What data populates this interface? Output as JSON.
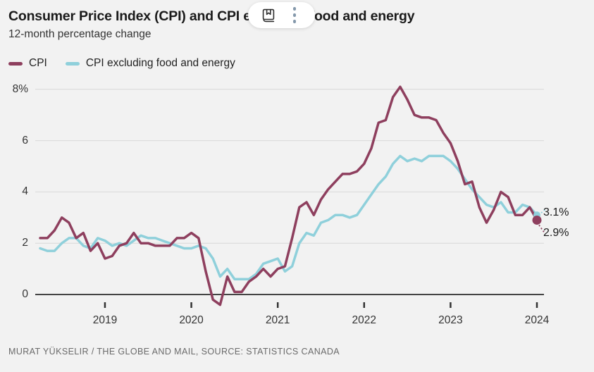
{
  "header": {
    "title": "Consumer Price Index (CPI) and CPI excluding food and energy",
    "subtitle": "12-month percentage change"
  },
  "toolbar": {
    "icons": [
      {
        "name": "bookmark-icon"
      },
      {
        "name": "overflow-menu-icon"
      }
    ]
  },
  "footer": {
    "credit": "MURAT YÜKSELIR / THE GLOBE AND MAIL, SOURCE: STATISTICS CANADA"
  },
  "colors": {
    "background": "#f2f2f2",
    "gridline": "#d8d8d8",
    "zero_line": "#2b2b2b",
    "axis_text": "#333333",
    "footer_text": "#6a6a6a",
    "cpi_line": "#8e3f5e",
    "core_line": "#8fd0db"
  },
  "chart_data": {
    "type": "line",
    "title": "Consumer Price Index (CPI) and CPI excluding food and energy",
    "subtitle": "12-month percentage change",
    "frequency": "monthly",
    "x_start": "2018-04",
    "x_end": "2024-01",
    "grid": true,
    "legend_position": "top-left",
    "x_axis": {
      "ticks": [
        "2019",
        "2020",
        "2021",
        "2022",
        "2023",
        "2024"
      ]
    },
    "y_axis": {
      "range": [
        -0.6,
        8.3
      ],
      "ticks": [
        {
          "value": 8,
          "label": "8%"
        },
        {
          "value": 6,
          "label": "6"
        },
        {
          "value": 4,
          "label": "4"
        },
        {
          "value": 2,
          "label": "2"
        },
        {
          "value": 0,
          "label": "0"
        }
      ]
    },
    "series": [
      {
        "name": "CPI",
        "color": "#8e3f5e",
        "end_value": 2.9,
        "end_label": "2.9%",
        "values": [
          2.2,
          2.2,
          2.5,
          3.0,
          2.8,
          2.2,
          2.4,
          1.7,
          2.0,
          1.4,
          1.5,
          1.9,
          2.0,
          2.4,
          2.0,
          2.0,
          1.9,
          1.9,
          1.9,
          2.2,
          2.2,
          2.4,
          2.2,
          0.9,
          -0.2,
          -0.4,
          0.7,
          0.1,
          0.1,
          0.5,
          0.7,
          1.0,
          0.7,
          1.0,
          1.1,
          2.2,
          3.4,
          3.6,
          3.1,
          3.7,
          4.1,
          4.4,
          4.7,
          4.7,
          4.8,
          5.1,
          5.7,
          6.7,
          6.8,
          7.7,
          8.1,
          7.6,
          7.0,
          6.9,
          6.9,
          6.8,
          6.3,
          5.9,
          5.2,
          4.3,
          4.4,
          3.4,
          2.8,
          3.3,
          4.0,
          3.8,
          3.1,
          3.1,
          3.4,
          2.9
        ]
      },
      {
        "name": "CPI excluding food and energy",
        "color": "#8fd0db",
        "end_value": 3.1,
        "end_label": "3.1%",
        "values": [
          1.8,
          1.7,
          1.7,
          2.0,
          2.2,
          2.2,
          1.9,
          1.8,
          2.2,
          2.1,
          1.9,
          2.0,
          1.9,
          2.1,
          2.3,
          2.2,
          2.2,
          2.1,
          2.0,
          1.9,
          1.8,
          1.8,
          1.9,
          1.8,
          1.4,
          0.7,
          1.0,
          0.6,
          0.6,
          0.6,
          0.8,
          1.2,
          1.3,
          1.4,
          0.9,
          1.1,
          2.0,
          2.4,
          2.3,
          2.8,
          2.9,
          3.1,
          3.1,
          3.0,
          3.1,
          3.5,
          3.9,
          4.3,
          4.6,
          5.1,
          5.4,
          5.2,
          5.3,
          5.2,
          5.4,
          5.4,
          5.4,
          5.2,
          4.9,
          4.5,
          4.1,
          3.8,
          3.5,
          3.4,
          3.6,
          3.2,
          3.2,
          3.5,
          3.4,
          3.1
        ]
      }
    ]
  }
}
